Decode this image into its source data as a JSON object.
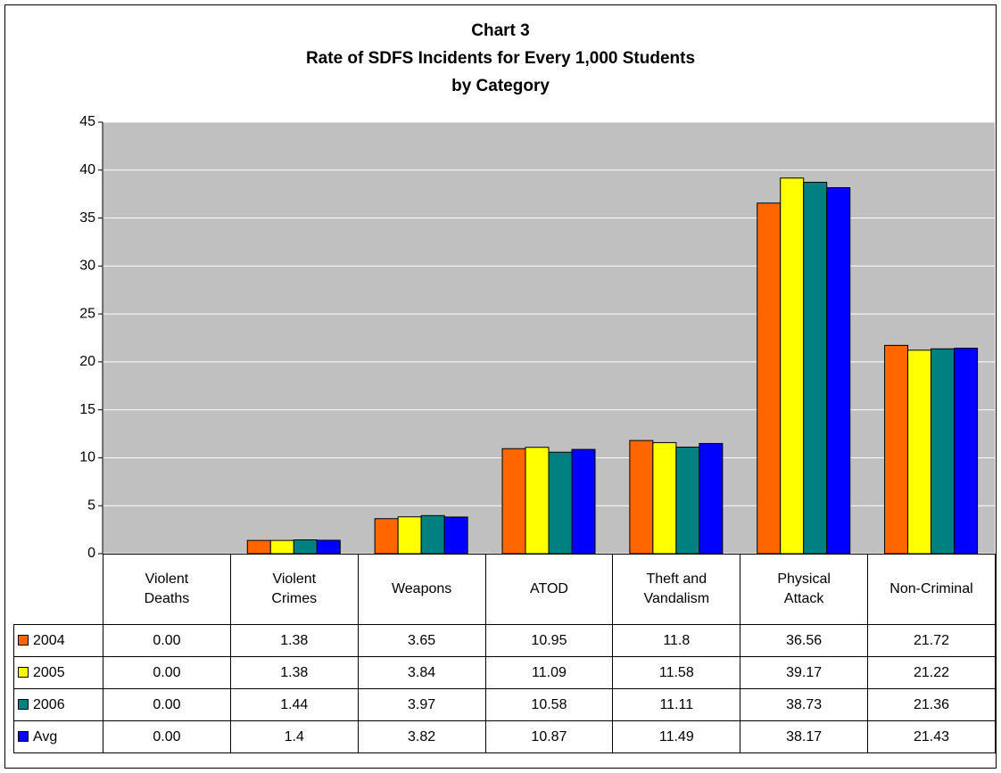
{
  "chart_data": {
    "type": "bar",
    "title": [
      "Chart 3",
      "Rate of SDFS Incidents for Every 1,000 Students",
      "by Category"
    ],
    "categories": [
      "Violent Deaths",
      "Violent Crimes",
      "Weapons",
      "ATOD",
      "Theft and Vandalism",
      "Physical Attack",
      "Non-Criminal"
    ],
    "series": [
      {
        "name": "2004",
        "color": "#ff6600",
        "values": [
          0,
          1.38,
          3.65,
          10.95,
          11.8,
          36.56,
          21.72
        ],
        "value_labels": [
          "0.00",
          "1.38",
          "3.65",
          "10.95",
          "11.8",
          "36.56",
          "21.72"
        ]
      },
      {
        "name": "2005",
        "color": "#ffff00",
        "values": [
          0,
          1.38,
          3.84,
          11.09,
          11.58,
          39.17,
          21.22
        ],
        "value_labels": [
          "0.00",
          "1.38",
          "3.84",
          "11.09",
          "11.58",
          "39.17",
          "21.22"
        ]
      },
      {
        "name": "2006",
        "color": "#008080",
        "values": [
          0,
          1.44,
          3.97,
          10.58,
          11.11,
          38.73,
          21.36
        ],
        "value_labels": [
          "0.00",
          "1.44",
          "3.97",
          "10.58",
          "11.11",
          "38.73",
          "21.36"
        ]
      },
      {
        "name": "Avg",
        "color": "#0000ff",
        "values": [
          0,
          1.4,
          3.82,
          10.87,
          11.49,
          38.17,
          21.43
        ],
        "value_labels": [
          "0.00",
          "1.4",
          "3.82",
          "10.87",
          "11.49",
          "38.17",
          "21.43"
        ]
      }
    ],
    "ylim": [
      0,
      45
    ],
    "yticks": [
      0,
      5,
      10,
      15,
      20,
      25,
      30,
      35,
      40,
      45
    ],
    "grid": true,
    "plot_background": "#c0c0c0"
  }
}
